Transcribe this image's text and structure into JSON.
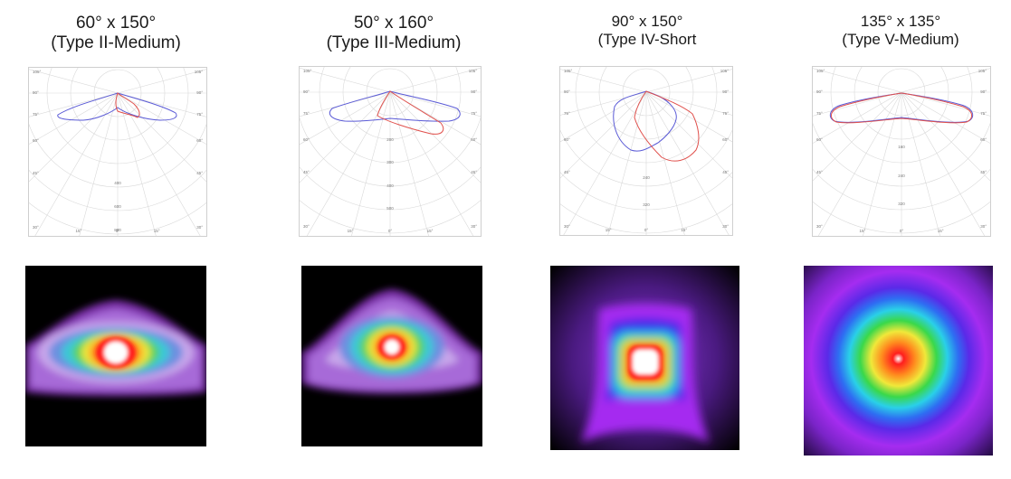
{
  "panels": [
    {
      "title_line1": "60° x 150°",
      "title_line2": "(Type II-Medium)",
      "polar": {
        "left_angles": [
          "105°",
          "90°",
          "75°",
          "60°",
          "45°",
          "30°"
        ],
        "right_angles": [
          "105°",
          "90°",
          "75°",
          "60°",
          "45°",
          "30°"
        ],
        "bottom_angles": [
          "15°",
          "0°",
          "15°"
        ],
        "radial_values": [
          "400",
          "600",
          "800",
          "1000"
        ]
      }
    },
    {
      "title_line1": "50° x 160°",
      "title_line2": "(Type III-Medium)",
      "polar": {
        "left_angles": [
          "105°",
          "90°",
          "75°",
          "60°",
          "45°",
          "30°"
        ],
        "right_angles": [
          "105°",
          "90°",
          "75°",
          "60°",
          "45°",
          "30°"
        ],
        "bottom_angles": [
          "15°",
          "0°",
          "15°"
        ],
        "radial_values": [
          "200",
          "300",
          "400",
          "500"
        ]
      }
    },
    {
      "title_line1": "90° x 150°",
      "title_line2": "(Type IV-Short",
      "polar": {
        "left_angles": [
          "105°",
          "90°",
          "75°",
          "60°",
          "45°",
          "30°"
        ],
        "right_angles": [
          "105°",
          "90°",
          "75°",
          "60°",
          "45°",
          "30°"
        ],
        "bottom_angles": [
          "15°",
          "0°",
          "15°"
        ],
        "radial_values": [
          "240",
          "320"
        ]
      }
    },
    {
      "title_line1": "135° x 135°",
      "title_line2": "(Type V-Medium)",
      "polar": {
        "left_angles": [
          "105°",
          "90°",
          "75°",
          "60°",
          "45°",
          "30°"
        ],
        "right_angles": [
          "105°",
          "90°",
          "75°",
          "60°",
          "45°",
          "30°"
        ],
        "bottom_angles": [
          "15°",
          "0°",
          "15°"
        ],
        "radial_values": [
          "160",
          "240",
          "320"
        ]
      }
    }
  ],
  "colors": {
    "curve_blue": "#5a5ad6",
    "curve_red": "#e0504c",
    "grid": "#d9d9d9",
    "heat_background": "#000000"
  }
}
